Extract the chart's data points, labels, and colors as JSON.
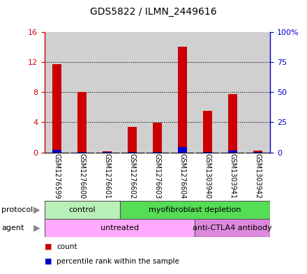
{
  "title": "GDS5822 / ILMN_2449616",
  "samples": [
    "GSM1276599",
    "GSM1276600",
    "GSM1276601",
    "GSM1276602",
    "GSM1276603",
    "GSM1276604",
    "GSM1303940",
    "GSM1303941",
    "GSM1303942"
  ],
  "red_values": [
    11.7,
    8.0,
    0.1,
    3.4,
    3.9,
    14.0,
    5.5,
    7.7,
    0.2
  ],
  "blue_values": [
    2.0,
    0.4,
    0.1,
    0.2,
    0.4,
    4.3,
    0.3,
    1.5,
    0.2
  ],
  "ylim_left": [
    0,
    16
  ],
  "ylim_right": [
    0,
    100
  ],
  "yticks_left": [
    0,
    4,
    8,
    12,
    16
  ],
  "ytick_labels_left": [
    "0",
    "4",
    "8",
    "12",
    "16"
  ],
  "yticks_right": [
    0,
    25,
    50,
    75,
    100
  ],
  "ytick_labels_right": [
    "0",
    "25",
    "50",
    "75",
    "100%"
  ],
  "protocol_groups": [
    {
      "label": "control",
      "start": 0,
      "end": 3,
      "color": "#b8f0b8"
    },
    {
      "label": "myofibroblast depletion",
      "start": 3,
      "end": 9,
      "color": "#55dd55"
    }
  ],
  "agent_groups": [
    {
      "label": "untreated",
      "start": 0,
      "end": 6,
      "color": "#ffaaff"
    },
    {
      "label": "anti-CTLA4 antibody",
      "start": 6,
      "end": 9,
      "color": "#dd88dd"
    }
  ],
  "red_color": "#cc0000",
  "blue_color": "#0000cc",
  "bar_width": 0.35,
  "legend_red": "count",
  "legend_blue": "percentile rank within the sample",
  "bg_sample_color": "#d0d0d0",
  "protocol_label": "protocol",
  "agent_label": "agent",
  "gridline_color": "#000000",
  "axis_bg": "#ffffff"
}
